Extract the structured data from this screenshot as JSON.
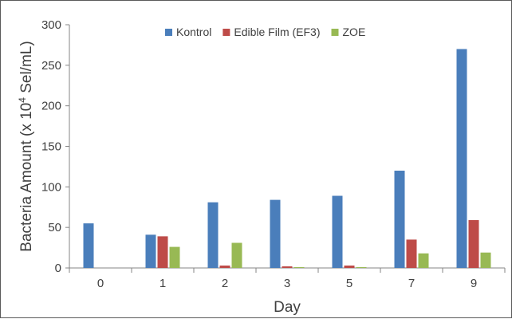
{
  "chart_data": {
    "type": "bar",
    "title": "",
    "xlabel": "Day",
    "ylabel": "Bacteria Amount  (x 10",
    "ylabel_sup": "4",
    "ylabel_unit": " Sel/mL)",
    "categories": [
      "0",
      "1",
      "2",
      "3",
      "5",
      "7",
      "9"
    ],
    "ylim": [
      0,
      300
    ],
    "yticks": [
      0,
      50,
      100,
      150,
      200,
      250,
      300
    ],
    "grid": false,
    "legend_position": "top-center",
    "series": [
      {
        "name": "Kontrol",
        "color": "#4a7ebb",
        "values": [
          55,
          41,
          81,
          84,
          89,
          120,
          270
        ]
      },
      {
        "name": "Edible Film (EF3)",
        "color": "#be4b48",
        "values": [
          0,
          39,
          3,
          2,
          3,
          35,
          59
        ]
      },
      {
        "name": "ZOE",
        "color": "#98b954",
        "values": [
          0,
          26,
          31,
          1,
          1,
          18,
          19
        ]
      }
    ]
  }
}
